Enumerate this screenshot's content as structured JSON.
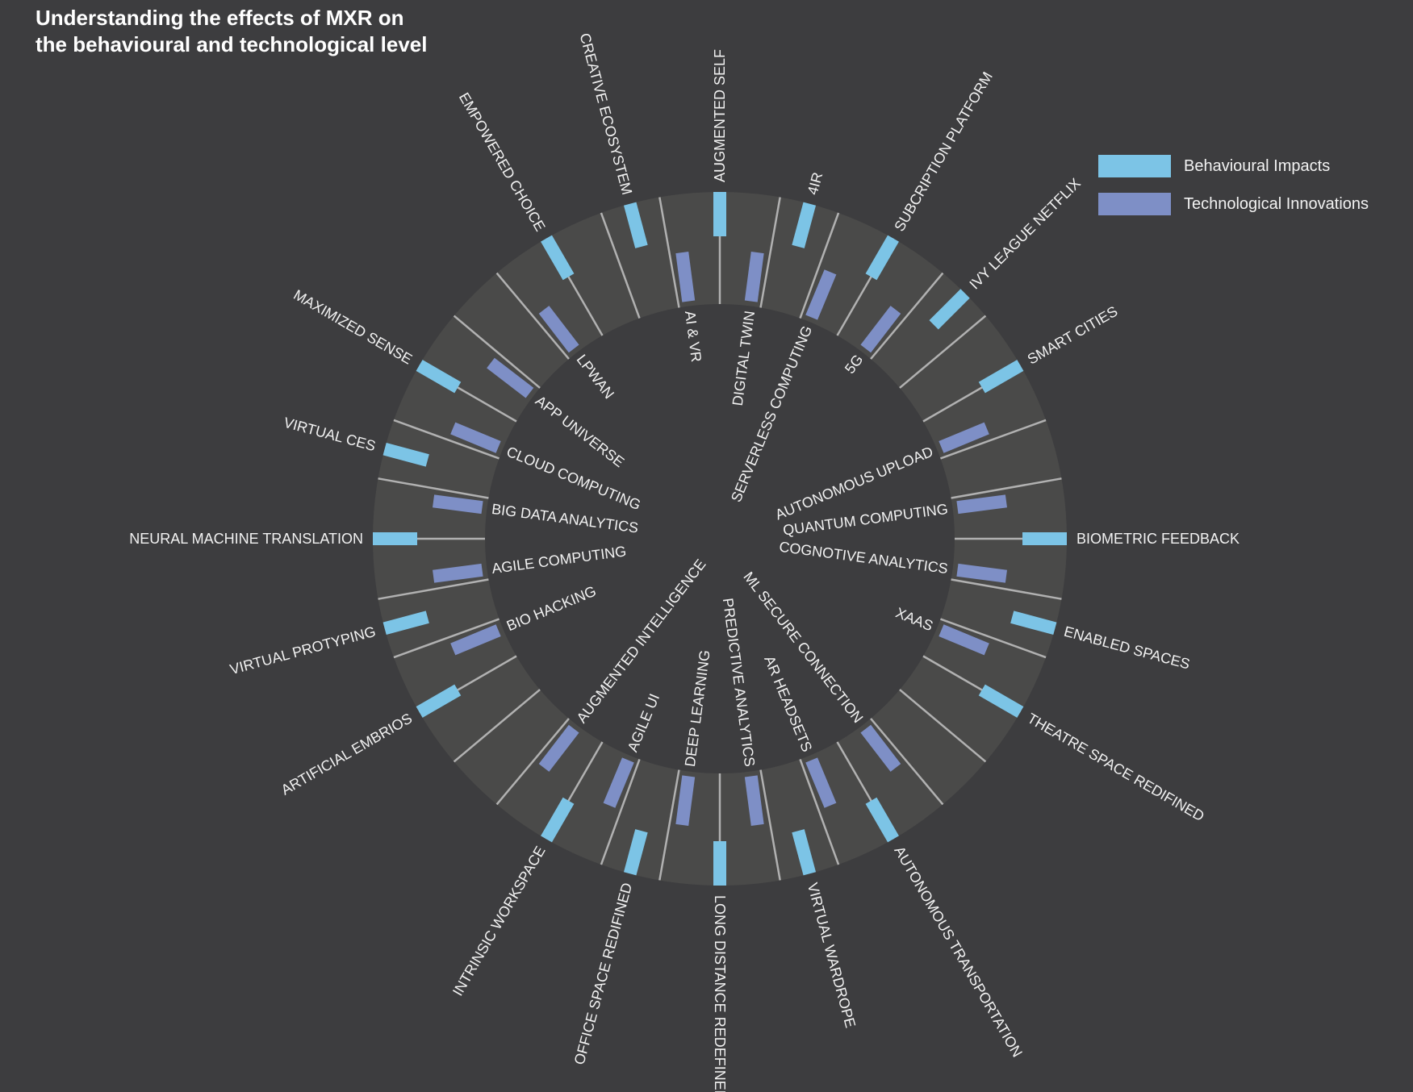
{
  "title": {
    "line1": "Understanding the effects of MXR on",
    "line2": "the behavioural and technological level"
  },
  "colors": {
    "background": "#3d3d3f",
    "ring": "#4a4a49",
    "spoke": "#c4c4c4",
    "behavioural": "#7cc4e6",
    "technological": "#7e8fc6",
    "text": "#f2f2f2"
  },
  "legend": {
    "behavioural_label": "Behavioural Impacts",
    "technological_label": "Technological Innovations"
  },
  "behavioural_impacts": [
    {
      "label": "AUGMENTED SELF",
      "angle": 0
    },
    {
      "label": "4IR",
      "angle": 15
    },
    {
      "label": "SUBCRIPTION PLATFORM",
      "angle": 30
    },
    {
      "label": "IVY LEAGUE NETFLIX",
      "angle": 45
    },
    {
      "label": "SMART CITIES",
      "angle": 60
    },
    {
      "label": "BIOMETRIC FEEDBACK",
      "angle": 90
    },
    {
      "label": "ENABLED SPACES",
      "angle": 105
    },
    {
      "label": "THEATRE SPACE REDIFINED",
      "angle": 120
    },
    {
      "label": "AUTONOMOUS TRANSPORTATION",
      "angle": 150
    },
    {
      "label": "VIRTUAL WARDROPE",
      "angle": 165
    },
    {
      "label": "LONG DISTANCE REDEFINED",
      "angle": 180
    },
    {
      "label": "OFFICE SPACE REDIFINED",
      "angle": 195
    },
    {
      "label": "INTRINSIC WORKSPACE",
      "angle": 210
    },
    {
      "label": "ARTIFICIAL EMBRIOS",
      "angle": 240
    },
    {
      "label": "VIRTUAL PROTYPING",
      "angle": 255
    },
    {
      "label": "NEURAL MACHINE TRANSLATION",
      "angle": 270
    },
    {
      "label": "VIRTUAL CES",
      "angle": 285
    },
    {
      "label": "MAXIMIZED SENSE",
      "angle": 300
    },
    {
      "label": "EMPOWERED CHOICE",
      "angle": 330
    },
    {
      "label": "CREATIVE ECOSYSTEM",
      "angle": 345
    }
  ],
  "technological_innovations": [
    {
      "label": "DIGITAL TWIN",
      "angle": 7.5
    },
    {
      "label": "SERVERLESS  COMPUTING",
      "angle": 22.5
    },
    {
      "label": "5G",
      "angle": 37.5
    },
    {
      "label": "AUTONOMOUS UPLOAD",
      "angle": 67.5
    },
    {
      "label": "QUANTUM COMPUTING",
      "angle": 82.5
    },
    {
      "label": "COGNOTIVE ANALYTICS",
      "angle": 97.5
    },
    {
      "label": "XAAS",
      "angle": 112.5
    },
    {
      "label": "ML SECURE CONNECTION",
      "angle": 142.5
    },
    {
      "label": "AR HEADSETS",
      "angle": 157.5
    },
    {
      "label": "PREDICTIVE ANALYTICS",
      "angle": 172.5
    },
    {
      "label": "DEEP LEARNING",
      "angle": 187.5
    },
    {
      "label": "AGILE UI",
      "angle": 202.5
    },
    {
      "label": "AUGMENTED INTELLIGENCE",
      "angle": 217.5
    },
    {
      "label": "BIO HACKING",
      "angle": 247.5
    },
    {
      "label": "AGILE COMPUTING",
      "angle": 262.5
    },
    {
      "label": "BIG DATA ANALYTICS",
      "angle": 277.5
    },
    {
      "label": "CLOUD COMPUTING",
      "angle": 292.5
    },
    {
      "label": "APP UNIVERSE",
      "angle": 307.5
    },
    {
      "label": "LPWAN",
      "angle": 322.5
    },
    {
      "label": "AI & VR",
      "angle": 352.5
    }
  ],
  "spoke_angles": [
    0,
    10,
    20,
    30,
    40,
    50,
    60,
    70,
    80,
    90,
    100,
    110,
    120,
    130,
    140,
    150,
    160,
    170,
    180,
    190,
    200,
    210,
    220,
    230,
    240,
    250,
    260,
    270,
    280,
    290,
    300,
    310,
    320,
    330,
    340,
    350
  ]
}
